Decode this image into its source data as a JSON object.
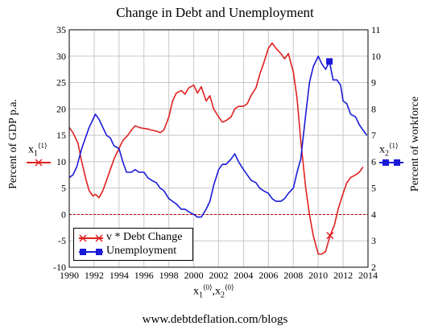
{
  "chart_data": {
    "type": "line",
    "title": "Change in Debt and Unemployment",
    "ylabel_left": "Percent of GDP p.a.",
    "ylabel_right": "Percent of workforce",
    "xlabel_var1": "x",
    "xlabel_var1_sub": "1",
    "xlabel_sup": "⟨0⟩",
    "xlabel_sep": ",",
    "xlabel_var2": "x",
    "xlabel_var2_sub": "2",
    "left_marker_var": "x",
    "left_marker_sub": "1",
    "left_marker_sup": "⟨1⟩",
    "right_marker_var": "x",
    "right_marker_sub": "2",
    "right_marker_sup": "⟨1⟩",
    "footer": "www.debtdeflation.com/blogs",
    "xlim": [
      1990,
      2014
    ],
    "ylim_left": [
      -10,
      35
    ],
    "ylim_right": [
      2,
      11
    ],
    "x_ticks": [
      "1990",
      "1992",
      "1994",
      "1996",
      "1998",
      "2000",
      "2002",
      "2004",
      "2006",
      "2008",
      "2010",
      "2012",
      "2014"
    ],
    "y_ticks_left": [
      "-10",
      "-5",
      "0",
      "5",
      "10",
      "15",
      "20",
      "25",
      "30",
      "35"
    ],
    "y_ticks_right": [
      "2",
      "3",
      "4",
      "5",
      "6",
      "7",
      "8",
      "9",
      "10",
      "11"
    ],
    "grid": true,
    "legend_position": "bottom-left",
    "series": [
      {
        "name": "v * Debt Change",
        "axis": "left",
        "color": "#e02020",
        "marker": "x",
        "marker_x": [
          2010.95
        ],
        "x": [
          1990,
          1990.3,
          1990.7,
          1991,
          1991.3,
          1991.6,
          1991.9,
          1992.1,
          1992.4,
          1992.7,
          1993,
          1993.3,
          1993.6,
          1994,
          1994.3,
          1994.7,
          1995,
          1995.3,
          1995.6,
          1996,
          1996.3,
          1996.6,
          1997,
          1997.3,
          1997.6,
          1998,
          1998.3,
          1998.6,
          1999,
          1999.3,
          1999.6,
          2000,
          2000.3,
          2000.6,
          2001,
          2001.3,
          2001.6,
          2002,
          2002.3,
          2002.6,
          2003,
          2003.3,
          2003.6,
          2004,
          2004.3,
          2004.6,
          2005,
          2005.3,
          2005.6,
          2006,
          2006.3,
          2006.6,
          2007,
          2007.3,
          2007.6,
          2008,
          2008.3,
          2008.6,
          2009,
          2009.3,
          2009.6,
          2010,
          2010.3,
          2010.6,
          2010.95,
          2011.3,
          2011.6,
          2012,
          2012.3,
          2012.6,
          2013,
          2013.3,
          2013.6
        ],
        "values": [
          16.5,
          15.5,
          13.5,
          10,
          7,
          4.5,
          3.5,
          3.8,
          3.2,
          4.5,
          6.5,
          8.5,
          10.5,
          12.5,
          14,
          15,
          16,
          16.8,
          16.5,
          16.3,
          16.2,
          16,
          15.8,
          15.5,
          16,
          18.5,
          21.5,
          23,
          23.5,
          22.8,
          24,
          24.5,
          23,
          24.2,
          21.5,
          22.5,
          20,
          18.5,
          17.5,
          17.8,
          18.5,
          20,
          20.5,
          20.5,
          21,
          22.5,
          24,
          26.5,
          28.5,
          31.5,
          32.5,
          31.5,
          30.5,
          29.5,
          30.5,
          27,
          22,
          14,
          5,
          0,
          -4,
          -7.5,
          -7.5,
          -7,
          -4,
          -2,
          1,
          4,
          6,
          7,
          7.5,
          8,
          9
        ]
      },
      {
        "name": "Unemployment",
        "axis": "right",
        "color": "#1a1ad8",
        "marker": "square",
        "marker_x": [
          2010.9
        ],
        "x": [
          1990,
          1990.3,
          1990.6,
          1991,
          1991.3,
          1991.6,
          1991.9,
          1992.1,
          1992.4,
          1992.7,
          1993,
          1993.3,
          1993.6,
          1994,
          1994.3,
          1994.6,
          1995,
          1995.3,
          1995.6,
          1996,
          1996.3,
          1996.6,
          1997,
          1997.3,
          1997.6,
          1998,
          1998.3,
          1998.6,
          1999,
          1999.3,
          1999.6,
          2000,
          2000.3,
          2000.6,
          2001,
          2001.3,
          2001.6,
          2002,
          2002.3,
          2002.6,
          2003,
          2003.3,
          2003.6,
          2004,
          2004.3,
          2004.6,
          2005,
          2005.3,
          2005.6,
          2006,
          2006.3,
          2006.6,
          2007,
          2007.3,
          2007.6,
          2008,
          2008.3,
          2008.6,
          2009,
          2009.3,
          2009.6,
          2010,
          2010.3,
          2010.6,
          2010.9,
          2011.2,
          2011.5,
          2011.8,
          2012,
          2012.3,
          2012.6,
          2013,
          2013.3,
          2013.6,
          2013.9
        ],
        "values": [
          5.4,
          5.5,
          5.8,
          6.5,
          6.9,
          7.3,
          7.6,
          7.8,
          7.6,
          7.3,
          7.0,
          6.9,
          6.6,
          6.5,
          6.0,
          5.6,
          5.6,
          5.7,
          5.6,
          5.6,
          5.4,
          5.3,
          5.2,
          5.0,
          4.9,
          4.6,
          4.5,
          4.4,
          4.2,
          4.2,
          4.1,
          4.0,
          3.9,
          3.9,
          4.2,
          4.5,
          5.1,
          5.7,
          5.9,
          5.9,
          6.1,
          6.3,
          6.0,
          5.7,
          5.5,
          5.3,
          5.2,
          5.0,
          4.9,
          4.8,
          4.6,
          4.5,
          4.5,
          4.6,
          4.8,
          5.0,
          5.6,
          6.1,
          7.8,
          9.0,
          9.6,
          10.0,
          9.7,
          9.5,
          9.8,
          9.1,
          9.1,
          8.9,
          8.3,
          8.2,
          7.8,
          7.7,
          7.4,
          7.2,
          7.0
        ]
      }
    ],
    "zero_line": {
      "axis": "left",
      "value": 0,
      "color": "#c00000",
      "style": "dashed"
    }
  }
}
